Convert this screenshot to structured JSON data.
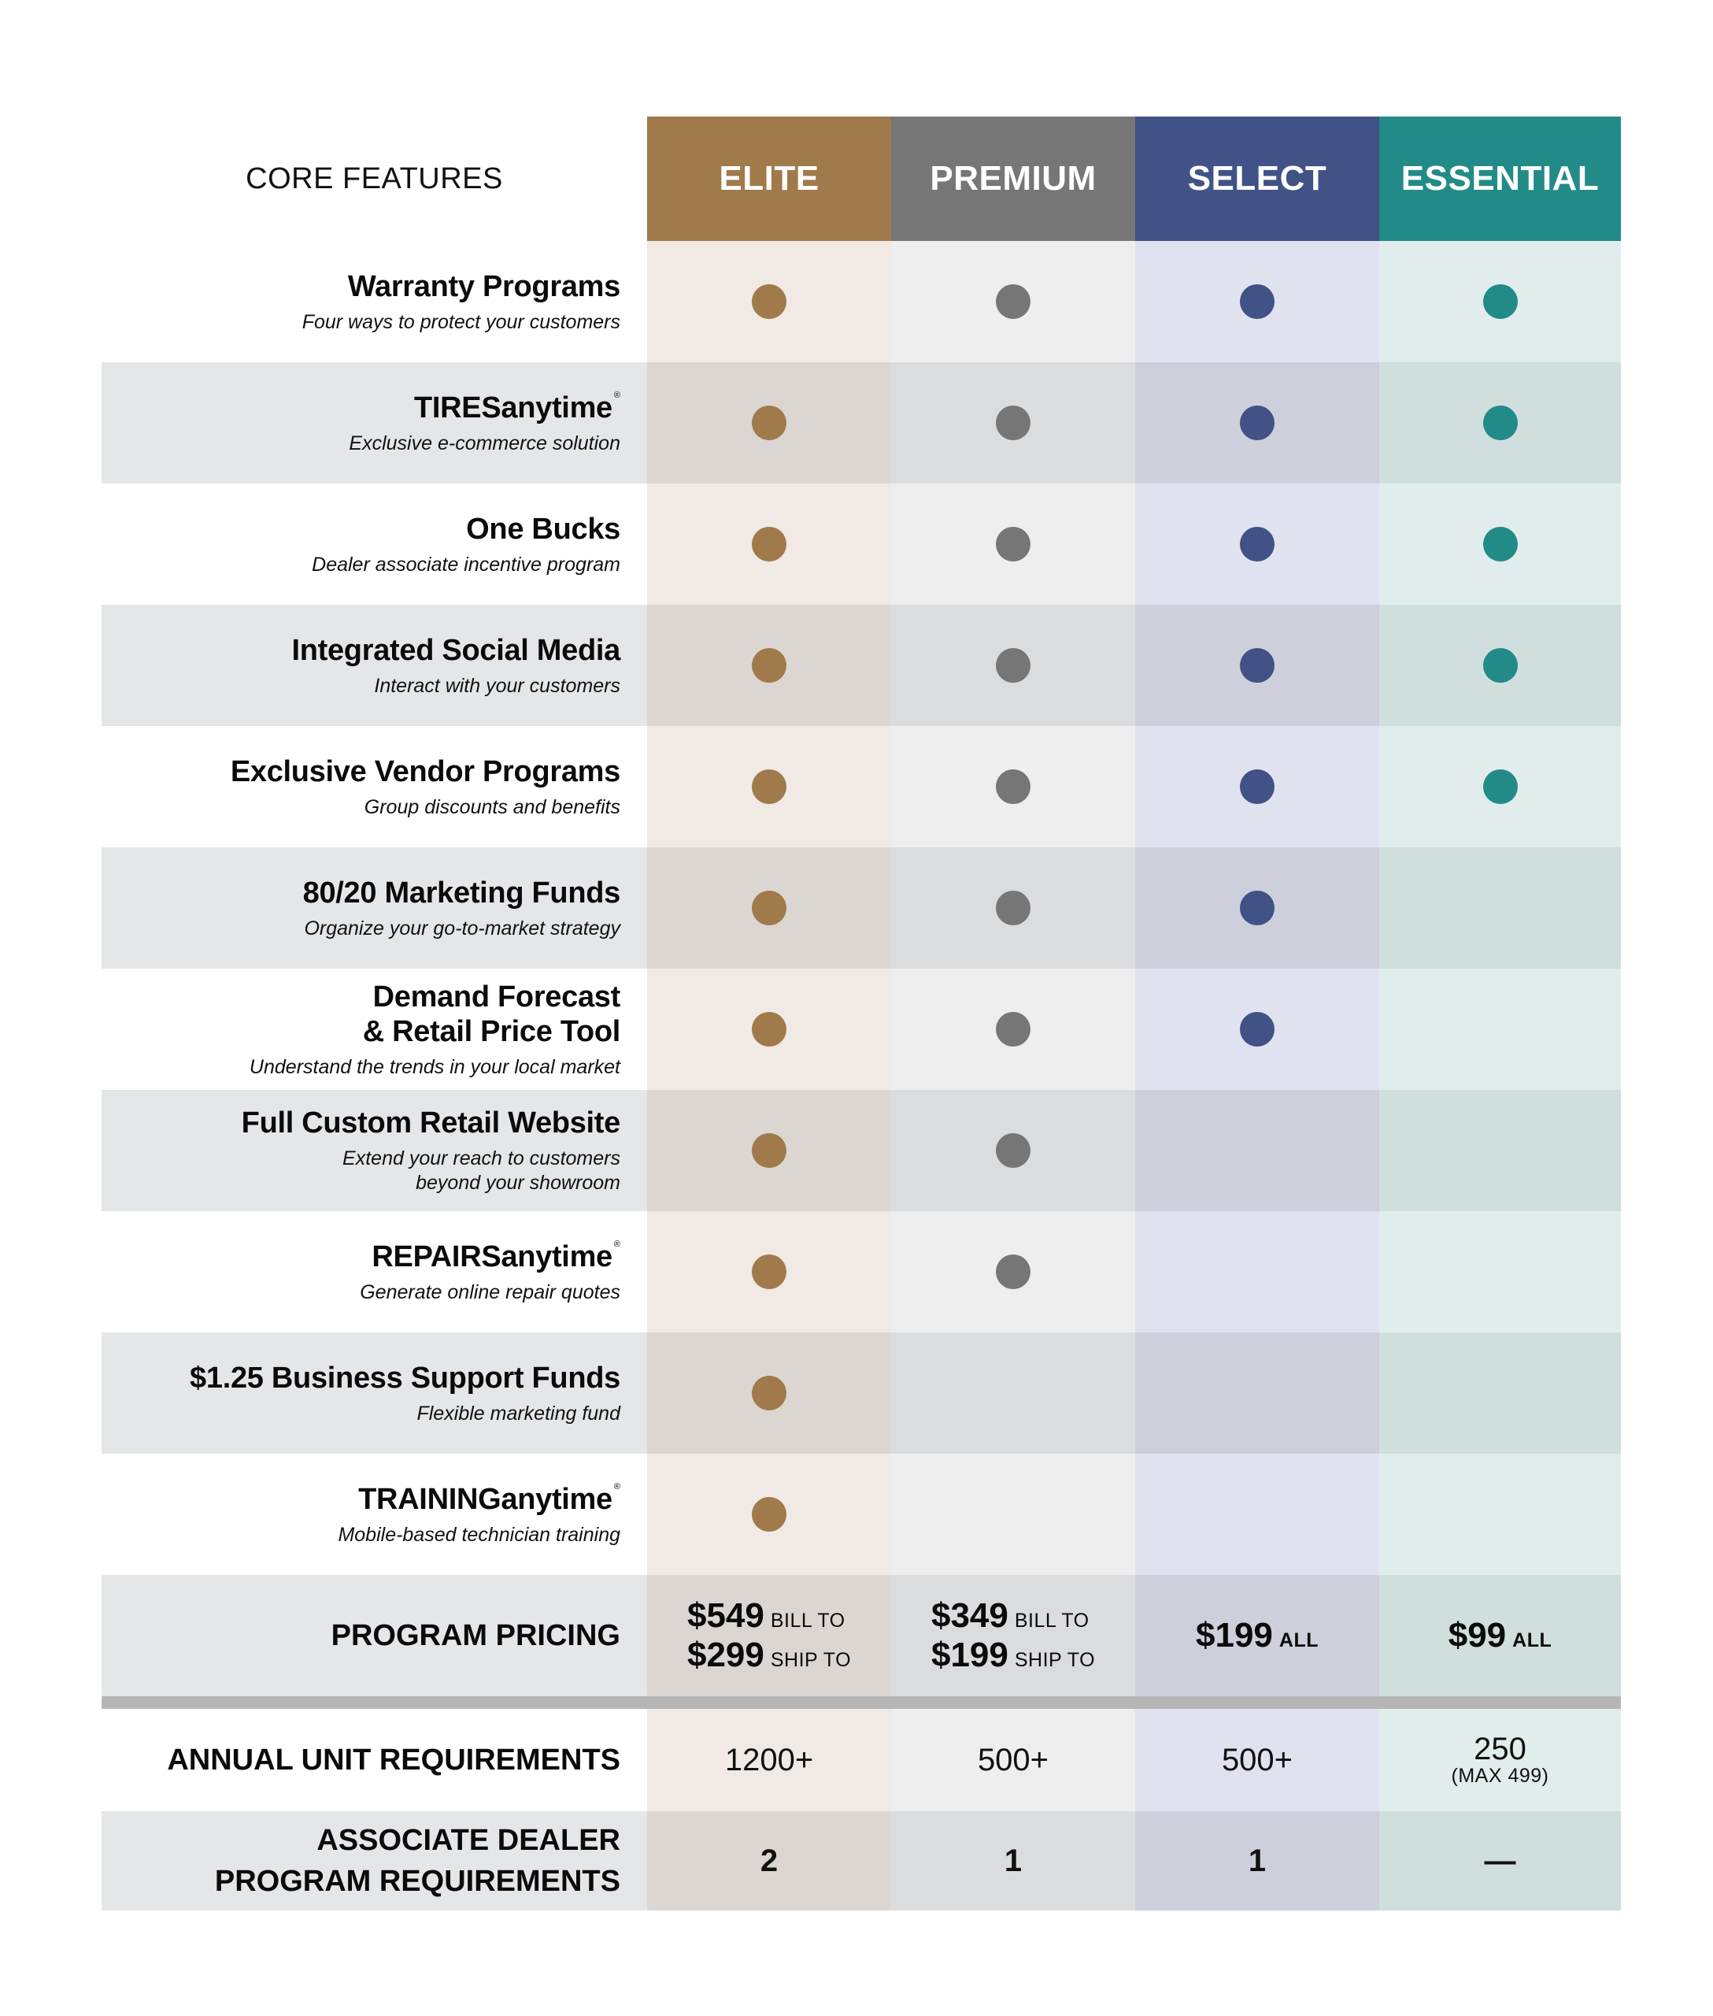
{
  "header": {
    "core_label": "CORE FEATURES",
    "tiers": [
      {
        "label": "ELITE",
        "color": "#a07a4a"
      },
      {
        "label": "PREMIUM",
        "color": "#767676"
      },
      {
        "label": "SELECT",
        "color": "#405286"
      },
      {
        "label": "ESSENTIAL",
        "color": "#228b87"
      }
    ]
  },
  "features": [
    {
      "title": "Warranty Programs",
      "subtitle": "Four ways to protect your customers",
      "reg": "",
      "tiers": [
        true,
        true,
        true,
        true
      ]
    },
    {
      "title": "TIRESanytime",
      "subtitle": "Exclusive e-commerce solution",
      "reg": "®",
      "tiers": [
        true,
        true,
        true,
        true
      ]
    },
    {
      "title": "One Bucks",
      "subtitle": "Dealer associate incentive program",
      "reg": "",
      "tiers": [
        true,
        true,
        true,
        true
      ]
    },
    {
      "title": "Integrated Social Media",
      "subtitle": "Interact with your customers",
      "reg": "",
      "tiers": [
        true,
        true,
        true,
        true
      ]
    },
    {
      "title": "Exclusive Vendor Programs",
      "subtitle": "Group discounts and benefits",
      "reg": "",
      "tiers": [
        true,
        true,
        true,
        true
      ]
    },
    {
      "title": "80/20 Marketing Funds",
      "subtitle": "Organize your go-to-market strategy",
      "reg": "",
      "tiers": [
        true,
        true,
        true,
        false
      ]
    },
    {
      "title": "Demand Forecast\n& Retail Price Tool",
      "subtitle": "Understand the trends in your local market",
      "reg": "",
      "tiers": [
        true,
        true,
        true,
        false
      ]
    },
    {
      "title": "Full Custom Retail Website",
      "subtitle": "Extend your reach to customers\nbeyond your showroom",
      "reg": "",
      "tiers": [
        true,
        true,
        false,
        false
      ]
    },
    {
      "title": "REPAIRSanytime",
      "subtitle": "Generate online repair quotes",
      "reg": "®",
      "tiers": [
        true,
        true,
        false,
        false
      ]
    },
    {
      "title": "$1.25 Business Support Funds",
      "subtitle": "Flexible marketing fund",
      "reg": "",
      "tiers": [
        true,
        false,
        false,
        false
      ]
    },
    {
      "title": "TRAININGanytime",
      "subtitle": "Mobile-based technician training",
      "reg": "®",
      "tiers": [
        true,
        false,
        false,
        false
      ]
    }
  ],
  "pricing": {
    "label": "PROGRAM PRICING",
    "elite": [
      {
        "amount": "$549",
        "tag": "BILL TO"
      },
      {
        "amount": "$299",
        "tag": "SHIP TO"
      }
    ],
    "premium": [
      {
        "amount": "$349",
        "tag": "BILL TO"
      },
      {
        "amount": "$199",
        "tag": "SHIP TO"
      }
    ],
    "select": {
      "amount": "$199",
      "tag": "ALL"
    },
    "essential": {
      "amount": "$99",
      "tag": "ALL"
    }
  },
  "annual": {
    "label": "ANNUAL UNIT REQUIREMENTS",
    "values": [
      "1200+",
      "500+",
      "500+",
      "250"
    ],
    "essential_note": "(MAX 499)"
  },
  "associate": {
    "label_line1": "ASSOCIATE DEALER",
    "label_line2": "PROGRAM REQUIREMENTS",
    "values": [
      "2",
      "1",
      "1",
      "—"
    ]
  }
}
